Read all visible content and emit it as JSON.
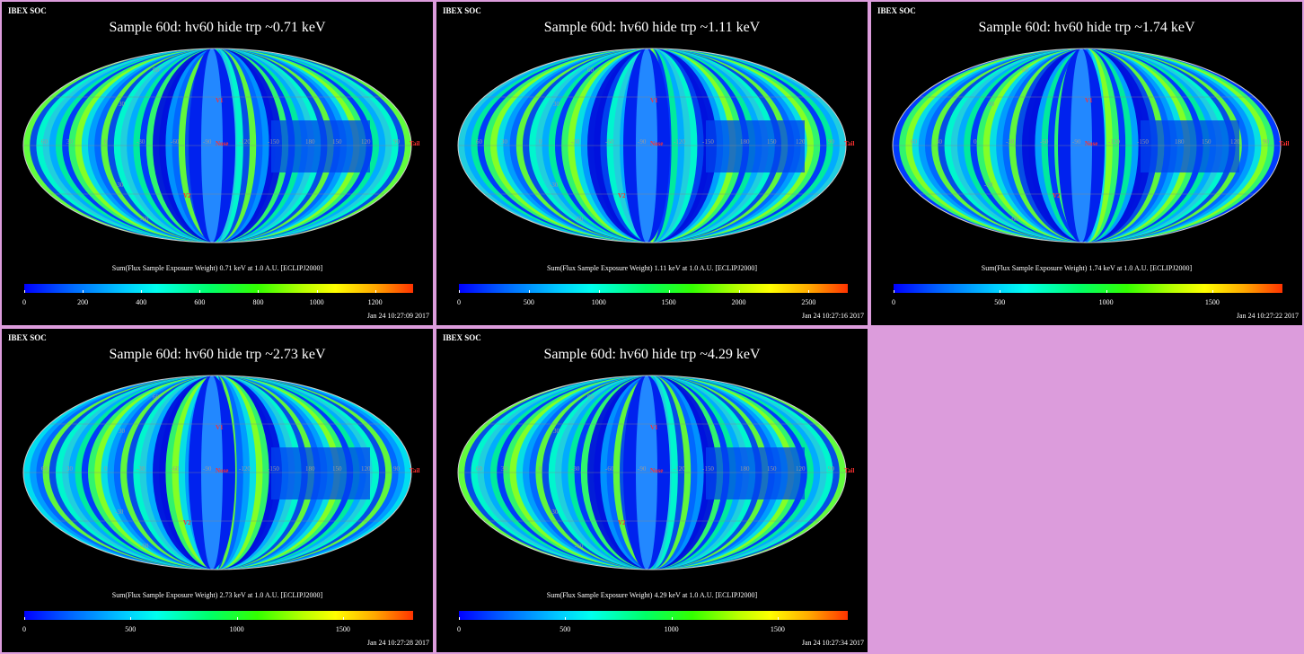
{
  "header": "IBEX SOC",
  "caption_prefix": "Sum(Flux Sample Exposure Weight)",
  "caption_suffix": "at 1.0 A.U. [ECLIPJ2000]",
  "grid_labels": {
    "lon": [
      "60",
      "30",
      "0",
      "-30",
      "-60",
      "-90",
      "-120",
      "-150",
      "180",
      "150",
      "120",
      "90"
    ],
    "lat": [
      "60",
      "30",
      "-30",
      "-60"
    ],
    "markers": [
      "Nose",
      "Tail",
      "V1",
      "V2"
    ]
  },
  "panels": [
    {
      "title": "Sample 60d: hv60 hide trp ~0.71 keV",
      "energy": "0.71 keV",
      "ticks": [
        "0",
        "200",
        "400",
        "600",
        "800",
        "1000",
        "1200"
      ],
      "tick_values": [
        0,
        200,
        400,
        600,
        800,
        1000,
        1200
      ],
      "max": 1330,
      "timestamp": "Jan 24 10:27:09 2017"
    },
    {
      "title": "Sample 60d: hv60 hide trp ~1.11 keV",
      "energy": "1.11 keV",
      "ticks": [
        "0",
        "500",
        "1000",
        "1500",
        "2000",
        "2500"
      ],
      "tick_values": [
        0,
        500,
        1000,
        1500,
        2000,
        2500
      ],
      "max": 2780,
      "timestamp": "Jan 24 10:27:16 2017"
    },
    {
      "title": "Sample 60d: hv60 hide trp ~1.74 keV",
      "energy": "1.74 keV",
      "ticks": [
        "0",
        "500",
        "1000",
        "1500"
      ],
      "tick_values": [
        0,
        500,
        1000,
        1500
      ],
      "max": 1830,
      "timestamp": "Jan 24 10:27:22 2017"
    },
    {
      "title": "Sample 60d: hv60 hide trp ~2.73 keV",
      "energy": "2.73 keV",
      "ticks": [
        "0",
        "500",
        "1000",
        "1500"
      ],
      "tick_values": [
        0,
        500,
        1000,
        1500
      ],
      "max": 1830,
      "timestamp": "Jan 24 10:27:28 2017"
    },
    {
      "title": "Sample 60d: hv60 hide trp ~4.29 keV",
      "energy": "4.29 keV",
      "ticks": [
        "0",
        "500",
        "1000",
        "1500"
      ],
      "tick_values": [
        0,
        500,
        1000,
        1500
      ],
      "max": 1830,
      "timestamp": "Jan 24 10:27:34 2017"
    }
  ]
}
